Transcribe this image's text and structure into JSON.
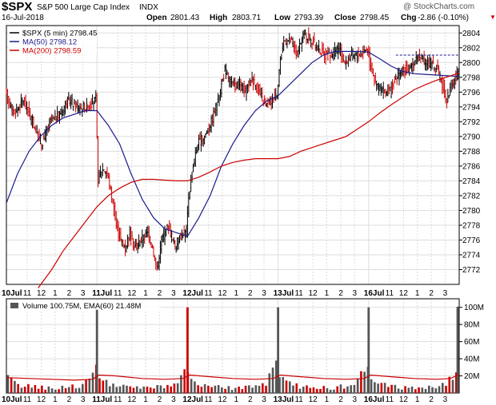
{
  "header": {
    "symbol": "$SPX",
    "name": "S&P 500 Large Cap Index",
    "exchange": "INDX",
    "watermark": "@ StockCharts.com",
    "date": "16-Jul-2018",
    "open_label": "Open",
    "open_value": "2801.43",
    "high_label": "High",
    "high_value": "2803.71",
    "low_label": "Low",
    "low_value": "2793.39",
    "close_label": "Close",
    "close_value": "2798.45",
    "chg_label": "Chg",
    "chg_value": "-2.86 (-0.10%)"
  },
  "colors": {
    "price_up": "#000000",
    "price_down": "#cc0000",
    "ma50": "#1b1b8f",
    "ma200": "#cc0000",
    "vol_up": "#555555",
    "vol_down": "#cc0000",
    "ema_line": "#cc0000",
    "grid": "#dddddd"
  },
  "chart_data": {
    "type": "line",
    "title": "$SPX S&P 500 Large Cap Index INDX",
    "interval": "5 min",
    "price_panel": {
      "legend": [
        {
          "label": "$SPX (5 min) 2798.45",
          "color": "#000000"
        },
        {
          "label": "MA(50) 2798.12",
          "color": "#1b1b8f"
        },
        {
          "label": "MA(200) 2798.59",
          "color": "#cc0000"
        }
      ],
      "ylim": [
        2770,
        2805
      ],
      "yticks": [
        2772,
        2774,
        2776,
        2778,
        2780,
        2782,
        2784,
        2786,
        2788,
        2790,
        2792,
        2794,
        2796,
        2798,
        2800,
        2802,
        2804
      ],
      "reference_line": 2801,
      "price_path": [
        [
          0,
          2796
        ],
        [
          4,
          2793
        ],
        [
          8,
          2795
        ],
        [
          12,
          2792
        ],
        [
          16,
          2789
        ],
        [
          20,
          2792
        ],
        [
          24,
          2793
        ],
        [
          28,
          2795
        ],
        [
          32,
          2794
        ],
        [
          36,
          2794
        ],
        [
          40,
          2795
        ],
        [
          41,
          2784
        ],
        [
          43,
          2786
        ],
        [
          45,
          2785
        ],
        [
          47,
          2782
        ],
        [
          49,
          2778
        ],
        [
          51,
          2776
        ],
        [
          53,
          2775
        ],
        [
          55,
          2777
        ],
        [
          57,
          2775
        ],
        [
          60,
          2776
        ],
        [
          63,
          2777
        ],
        [
          65,
          2775
        ],
        [
          67,
          2772
        ],
        [
          69,
          2776
        ],
        [
          72,
          2778
        ],
        [
          75,
          2775
        ],
        [
          78,
          2777
        ],
        [
          80,
          2777
        ],
        [
          81,
          2782
        ],
        [
          83,
          2786
        ],
        [
          85,
          2789
        ],
        [
          88,
          2790
        ],
        [
          91,
          2792
        ],
        [
          94,
          2795
        ],
        [
          97,
          2799
        ],
        [
          100,
          2797
        ],
        [
          103,
          2797
        ],
        [
          106,
          2796
        ],
        [
          109,
          2798
        ],
        [
          112,
          2796
        ],
        [
          115,
          2794
        ],
        [
          118,
          2795
        ],
        [
          120,
          2796
        ],
        [
          121,
          2799
        ],
        [
          123,
          2803
        ],
        [
          126,
          2803
        ],
        [
          129,
          2801
        ],
        [
          132,
          2804
        ],
        [
          135,
          2803
        ],
        [
          138,
          2802
        ],
        [
          141,
          2801
        ],
        [
          144,
          2801
        ],
        [
          147,
          2802
        ],
        [
          150,
          2800
        ],
        [
          153,
          2801
        ],
        [
          156,
          2801
        ],
        [
          160,
          2802
        ],
        [
          161,
          2800
        ],
        [
          164,
          2797
        ],
        [
          167,
          2796
        ],
        [
          170,
          2796
        ],
        [
          173,
          2798
        ],
        [
          176,
          2799
        ],
        [
          179,
          2799
        ],
        [
          182,
          2801
        ],
        [
          185,
          2800
        ],
        [
          188,
          2800
        ],
        [
          191,
          2799
        ],
        [
          193,
          2797
        ],
        [
          195,
          2795
        ],
        [
          197,
          2797
        ],
        [
          199,
          2798
        ],
        [
          200,
          2798.45
        ]
      ],
      "ma50_path": [
        [
          0,
          2781
        ],
        [
          5,
          2785
        ],
        [
          10,
          2788
        ],
        [
          15,
          2790
        ],
        [
          20,
          2791.5
        ],
        [
          25,
          2792.5
        ],
        [
          30,
          2793
        ],
        [
          35,
          2793.5
        ],
        [
          40,
          2793.5
        ],
        [
          45,
          2791.5
        ],
        [
          50,
          2789
        ],
        [
          55,
          2785
        ],
        [
          60,
          2781.5
        ],
        [
          65,
          2779
        ],
        [
          70,
          2777.5
        ],
        [
          75,
          2777
        ],
        [
          80,
          2776.5
        ],
        [
          85,
          2779
        ],
        [
          90,
          2782
        ],
        [
          95,
          2786
        ],
        [
          100,
          2789
        ],
        [
          105,
          2791.5
        ],
        [
          110,
          2793.5
        ],
        [
          115,
          2794.8
        ],
        [
          120,
          2795.5
        ],
        [
          125,
          2797
        ],
        [
          130,
          2798.5
        ],
        [
          135,
          2800
        ],
        [
          140,
          2801
        ],
        [
          145,
          2801.5
        ],
        [
          150,
          2801.5
        ],
        [
          155,
          2801.5
        ],
        [
          160,
          2801.4
        ],
        [
          165,
          2800.5
        ],
        [
          170,
          2799.5
        ],
        [
          175,
          2798.8
        ],
        [
          180,
          2798.5
        ],
        [
          185,
          2798.4
        ],
        [
          190,
          2798.3
        ],
        [
          195,
          2798.2
        ],
        [
          200,
          2798.12
        ]
      ],
      "ma200_path": [
        [
          14,
          2769.5
        ],
        [
          20,
          2772
        ],
        [
          25,
          2774.5
        ],
        [
          30,
          2776.5
        ],
        [
          35,
          2778.5
        ],
        [
          40,
          2780.5
        ],
        [
          45,
          2782
        ],
        [
          50,
          2783
        ],
        [
          55,
          2783.8
        ],
        [
          60,
          2784.2
        ],
        [
          65,
          2784.2
        ],
        [
          70,
          2784.1
        ],
        [
          75,
          2784
        ],
        [
          80,
          2784
        ],
        [
          85,
          2784.5
        ],
        [
          90,
          2785.2
        ],
        [
          95,
          2786
        ],
        [
          100,
          2786.5
        ],
        [
          105,
          2786.8
        ],
        [
          110,
          2787
        ],
        [
          115,
          2787
        ],
        [
          120,
          2787
        ],
        [
          125,
          2787.3
        ],
        [
          130,
          2788
        ],
        [
          135,
          2788.5
        ],
        [
          140,
          2789
        ],
        [
          145,
          2789.5
        ],
        [
          150,
          2790
        ],
        [
          155,
          2791
        ],
        [
          160,
          2792
        ],
        [
          165,
          2793.2
        ],
        [
          170,
          2794.3
        ],
        [
          175,
          2795.3
        ],
        [
          180,
          2796.3
        ],
        [
          185,
          2797
        ],
        [
          190,
          2797.6
        ],
        [
          195,
          2798.1
        ],
        [
          200,
          2798.59
        ]
      ]
    },
    "volume_panel": {
      "legend": "Volume 100.75M, EMA(60) 21.48M",
      "ylim": [
        0,
        110
      ],
      "yticks": [
        20,
        40,
        60,
        80,
        100
      ],
      "ytick_labels": [
        "20M",
        "40M",
        "60M",
        "80M",
        "100M"
      ],
      "spikes": [
        {
          "x": 40,
          "value": 100,
          "up": true
        },
        {
          "x": 80,
          "value": 100,
          "up": false
        },
        {
          "x": 120,
          "value": 100,
          "up": true
        },
        {
          "x": 160,
          "value": 100,
          "up": true
        },
        {
          "x": 200,
          "value": 100.75,
          "up": true
        }
      ],
      "ema_path": [
        [
          0,
          18
        ],
        [
          10,
          17
        ],
        [
          20,
          16
        ],
        [
          30,
          15
        ],
        [
          38,
          16
        ],
        [
          41,
          21
        ],
        [
          48,
          20
        ],
        [
          60,
          17
        ],
        [
          70,
          16
        ],
        [
          78,
          17
        ],
        [
          81,
          21
        ],
        [
          90,
          19
        ],
        [
          100,
          17
        ],
        [
          110,
          16
        ],
        [
          118,
          17
        ],
        [
          121,
          21
        ],
        [
          130,
          19
        ],
        [
          140,
          17
        ],
        [
          150,
          16
        ],
        [
          158,
          17
        ],
        [
          161,
          21
        ],
        [
          170,
          19
        ],
        [
          180,
          17
        ],
        [
          190,
          16
        ],
        [
          196,
          17
        ],
        [
          200,
          21.48
        ]
      ]
    },
    "x_axis": {
      "xlim": [
        0,
        200
      ],
      "ticks": [
        {
          "x": 0,
          "label": "10Jul",
          "major": true
        },
        {
          "x": 9.2,
          "label": "11",
          "major": false
        },
        {
          "x": 15.4,
          "label": "12",
          "major": false
        },
        {
          "x": 21.5,
          "label": "1",
          "major": false
        },
        {
          "x": 27.7,
          "label": "2",
          "major": false
        },
        {
          "x": 33.8,
          "label": "3",
          "major": false
        },
        {
          "x": 40,
          "label": "11Jul",
          "major": true
        },
        {
          "x": 49.2,
          "label": "11",
          "major": false
        },
        {
          "x": 55.4,
          "label": "12",
          "major": false
        },
        {
          "x": 61.5,
          "label": "1",
          "major": false
        },
        {
          "x": 67.7,
          "label": "2",
          "major": false
        },
        {
          "x": 73.8,
          "label": "3",
          "major": false
        },
        {
          "x": 80,
          "label": "12Jul",
          "major": true
        },
        {
          "x": 89.2,
          "label": "11",
          "major": false
        },
        {
          "x": 95.4,
          "label": "12",
          "major": false
        },
        {
          "x": 101.5,
          "label": "1",
          "major": false
        },
        {
          "x": 107.7,
          "label": "2",
          "major": false
        },
        {
          "x": 113.8,
          "label": "3",
          "major": false
        },
        {
          "x": 120,
          "label": "13Jul",
          "major": true
        },
        {
          "x": 129.2,
          "label": "11",
          "major": false
        },
        {
          "x": 135.4,
          "label": "12",
          "major": false
        },
        {
          "x": 141.5,
          "label": "1",
          "major": false
        },
        {
          "x": 147.7,
          "label": "2",
          "major": false
        },
        {
          "x": 153.8,
          "label": "3",
          "major": false
        },
        {
          "x": 160,
          "label": "16Jul",
          "major": true
        },
        {
          "x": 169.2,
          "label": "11",
          "major": false
        },
        {
          "x": 175.4,
          "label": "12",
          "major": false
        },
        {
          "x": 181.5,
          "label": "1",
          "major": false
        },
        {
          "x": 187.7,
          "label": "2",
          "major": false
        },
        {
          "x": 193.8,
          "label": "3",
          "major": false
        }
      ]
    }
  }
}
